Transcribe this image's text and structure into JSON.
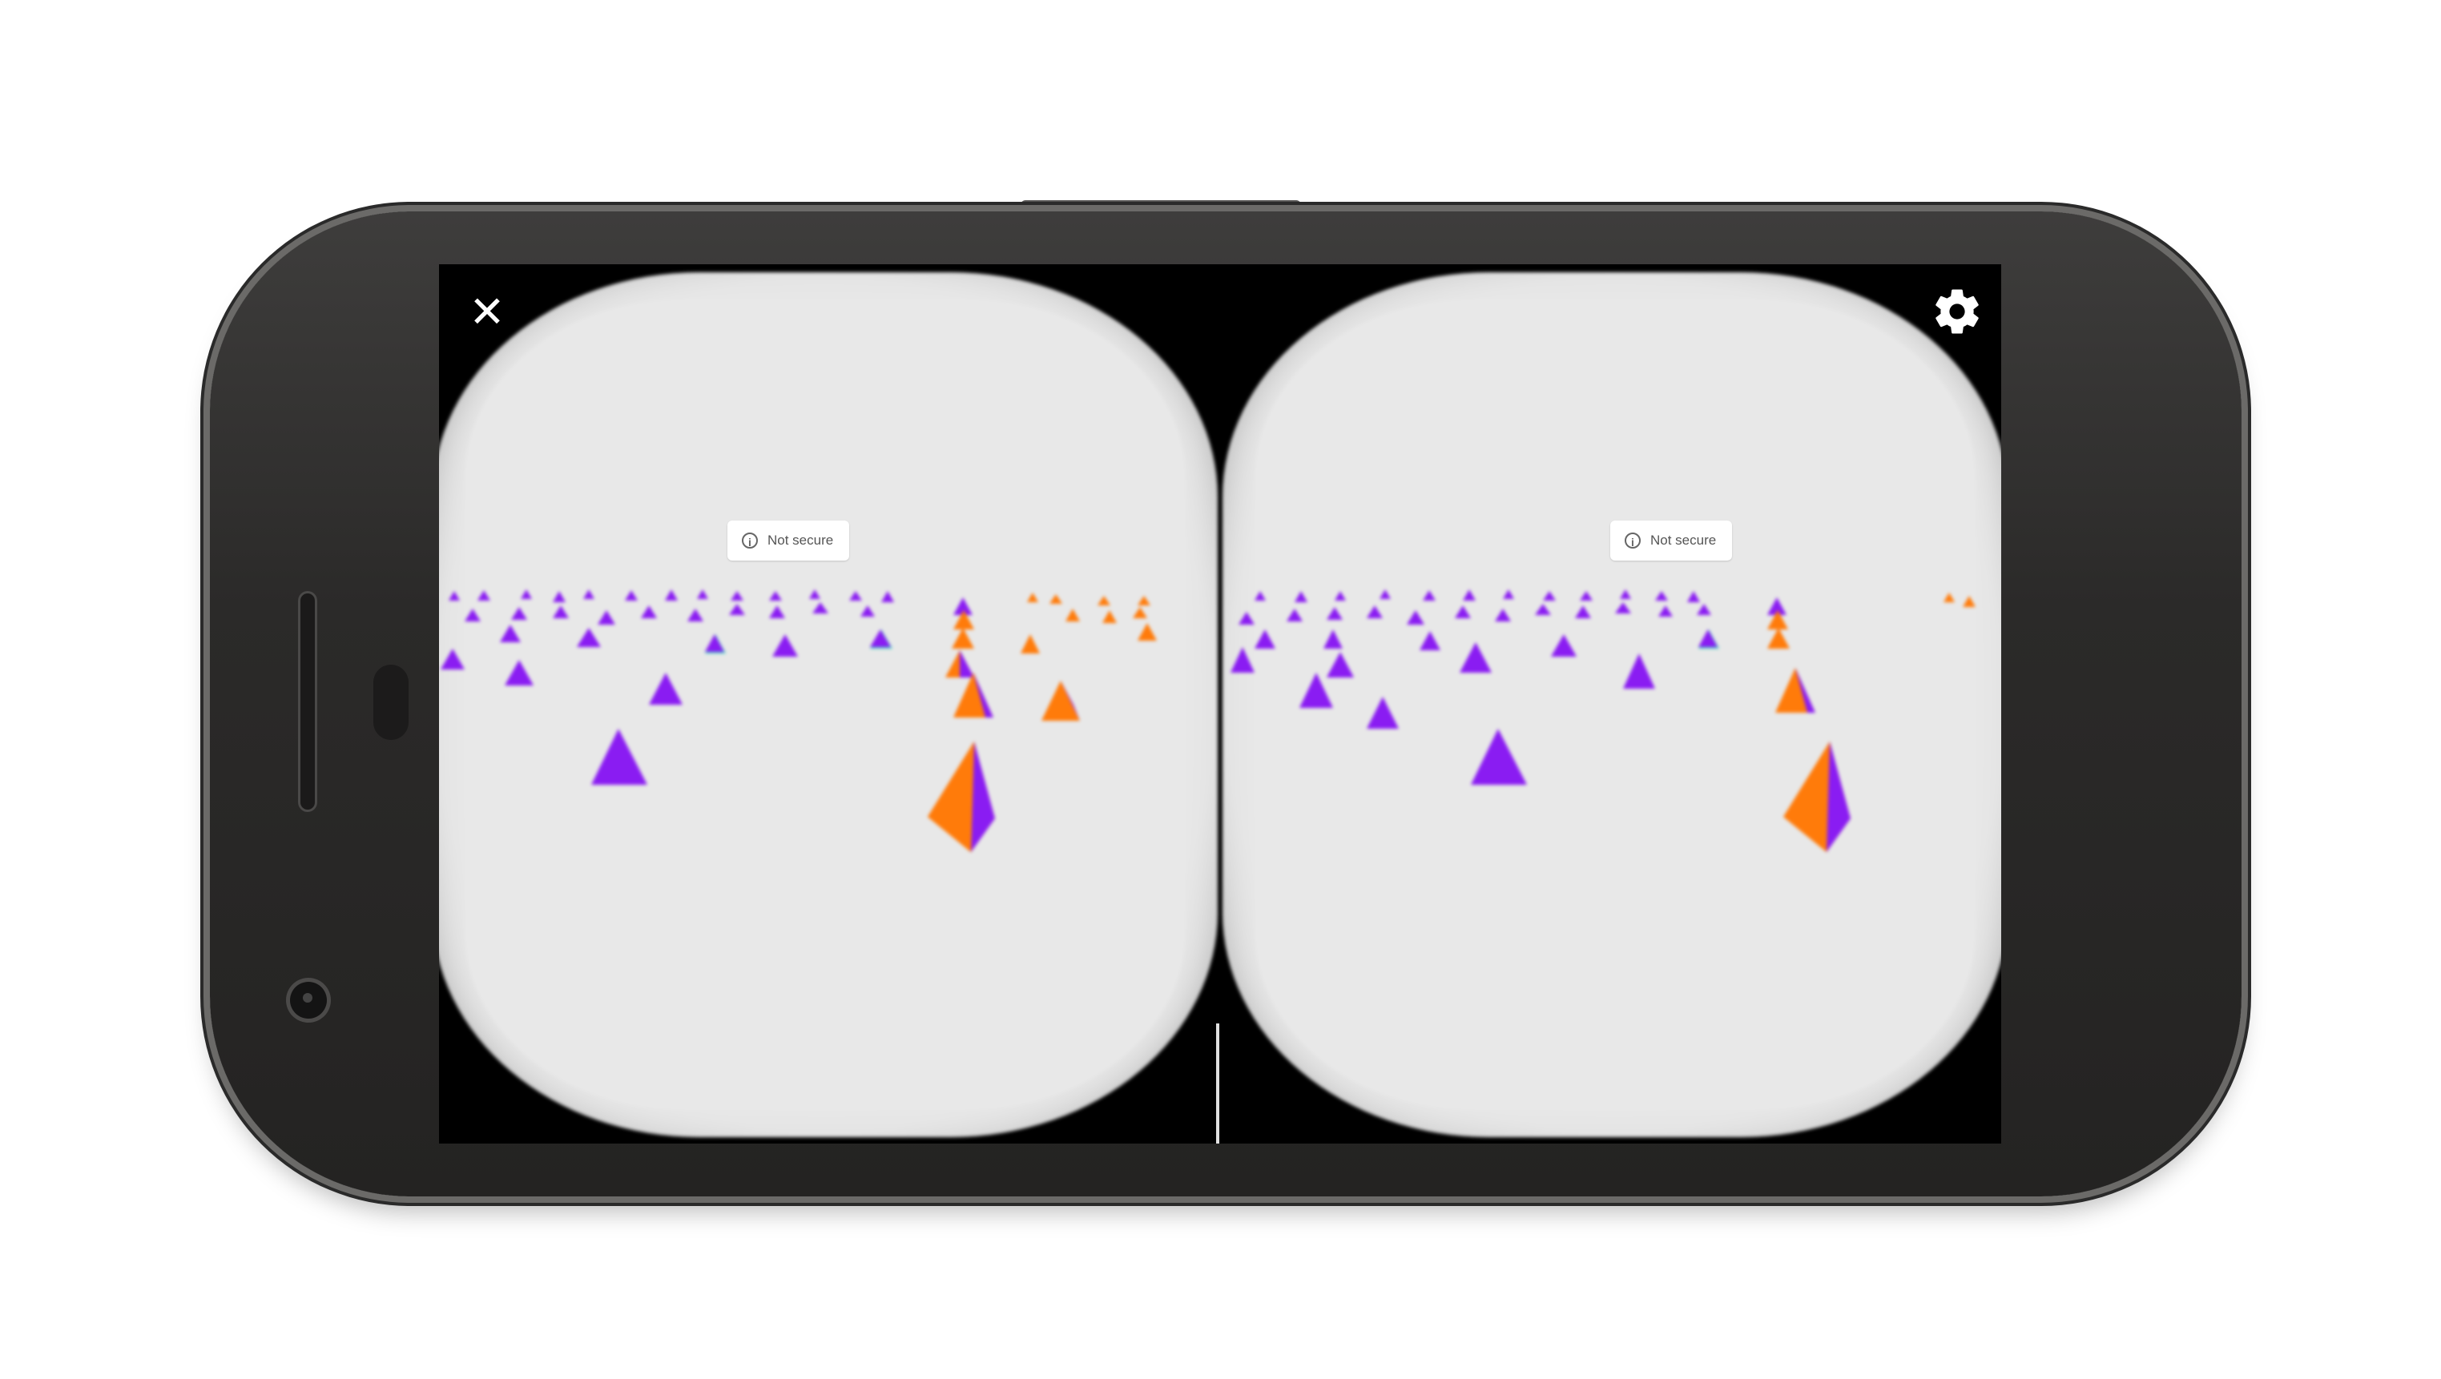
{
  "device": {
    "frame_color": "#2b2a29",
    "bezel_highlight": "#6b6a68"
  },
  "vr_viewer": {
    "close_icon": "close-icon",
    "close_glyph": "✕",
    "settings_icon": "gear-icon",
    "left_eye": {
      "security_chip": {
        "icon": "info-icon",
        "icon_glyph": "i",
        "label": "Not secure"
      }
    },
    "right_eye": {
      "security_chip": {
        "icon": "info-icon",
        "icon_glyph": "i",
        "label": "Not secure"
      }
    },
    "scene": {
      "background": "#e8e8e8",
      "object_colors": {
        "purple": "#8a1cf2",
        "orange": "#ff7b0a",
        "teal": "#3fd6c0"
      }
    }
  }
}
